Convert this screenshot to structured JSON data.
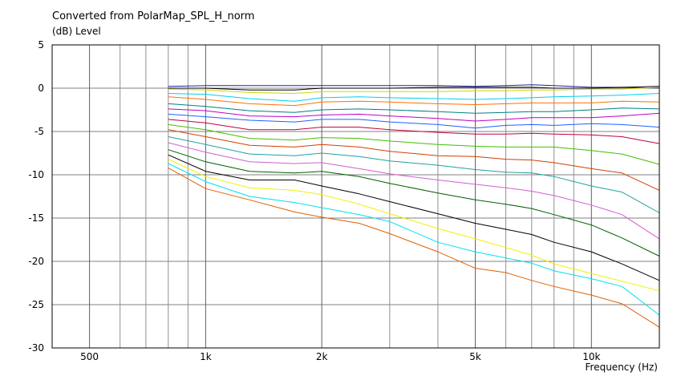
{
  "chart_data": {
    "type": "line",
    "title": "Converted from PolarMap_SPL_H_norm",
    "ylabel": "(dB)  Level",
    "xlabel": "Frequency  (Hz)",
    "xscale": "log",
    "xlim": [
      400,
      15000
    ],
    "ylim": [
      -30,
      5
    ],
    "grid": true,
    "x_ticks": [
      {
        "v": 500,
        "label": "500"
      },
      {
        "v": 1000,
        "label": "1k"
      },
      {
        "v": 2000,
        "label": "2k"
      },
      {
        "v": 5000,
        "label": "5k"
      },
      {
        "v": 10000,
        "label": "10k"
      }
    ],
    "y_ticks": [
      {
        "v": 5,
        "label": "5"
      },
      {
        "v": 0,
        "label": "0"
      },
      {
        "v": -5,
        "label": "-5"
      },
      {
        "v": -10,
        "label": "-10"
      },
      {
        "v": -15,
        "label": "-15"
      },
      {
        "v": -20,
        "label": "-20"
      },
      {
        "v": -25,
        "label": "-25"
      },
      {
        "v": -30,
        "label": "-30"
      }
    ],
    "x": [
      800,
      1000,
      1300,
      1700,
      2000,
      2500,
      3000,
      4000,
      5000,
      6000,
      7000,
      8000,
      10000,
      12000,
      15000
    ],
    "series": [
      {
        "color": "#2020a0",
        "values": [
          0.2,
          0.3,
          0.3,
          0.3,
          0.3,
          0.3,
          0.3,
          0.3,
          0.2,
          0.3,
          0.4,
          0.3,
          0.1,
          0.1,
          0.0
        ]
      },
      {
        "color": "#000000",
        "values": [
          0.0,
          0.0,
          -0.2,
          -0.2,
          0.0,
          0.0,
          0.0,
          0.1,
          0.1,
          0.1,
          0.1,
          0.0,
          0.0,
          0.1,
          0.2
        ]
      },
      {
        "color": "#d4d400",
        "values": [
          -0.1,
          -0.2,
          -0.5,
          -0.6,
          -0.4,
          -0.4,
          -0.4,
          -0.4,
          -0.3,
          -0.3,
          -0.2,
          -0.2,
          -0.1,
          -0.1,
          0.1
        ]
      },
      {
        "color": "#00d0f0",
        "values": [
          -0.6,
          -0.7,
          -1.2,
          -1.5,
          -1.1,
          -1.0,
          -1.1,
          -1.2,
          -1.3,
          -1.2,
          -1.1,
          -1.0,
          -0.9,
          -0.8,
          -0.6
        ]
      },
      {
        "color": "#ff7000",
        "values": [
          -1.0,
          -1.3,
          -1.8,
          -2.0,
          -1.6,
          -1.5,
          -1.6,
          -1.8,
          -1.9,
          -1.8,
          -1.7,
          -1.7,
          -1.7,
          -1.5,
          -1.6
        ]
      },
      {
        "color": "#008080",
        "values": [
          -1.8,
          -2.1,
          -2.6,
          -2.8,
          -2.5,
          -2.4,
          -2.5,
          -2.7,
          -2.9,
          -2.8,
          -2.7,
          -2.7,
          -2.5,
          -2.3,
          -2.4
        ]
      },
      {
        "color": "#c000c0",
        "values": [
          -2.4,
          -2.6,
          -3.2,
          -3.3,
          -3.1,
          -3.0,
          -3.2,
          -3.5,
          -3.8,
          -3.6,
          -3.4,
          -3.4,
          -3.4,
          -3.2,
          -2.9
        ]
      },
      {
        "color": "#2060ff",
        "values": [
          -3.0,
          -3.3,
          -3.7,
          -3.9,
          -3.6,
          -3.6,
          -3.9,
          -4.2,
          -4.6,
          -4.3,
          -4.2,
          -4.3,
          -4.1,
          -4.2,
          -4.5
        ]
      },
      {
        "color": "#c00040",
        "values": [
          -3.6,
          -4.0,
          -4.8,
          -4.8,
          -4.5,
          -4.5,
          -4.8,
          -5.1,
          -5.3,
          -5.3,
          -5.2,
          -5.3,
          -5.4,
          -5.6,
          -6.4
        ]
      },
      {
        "color": "#40c000",
        "values": [
          -4.2,
          -4.8,
          -5.8,
          -6.0,
          -5.7,
          -5.8,
          -6.1,
          -6.5,
          -6.7,
          -6.8,
          -6.8,
          -6.8,
          -7.2,
          -7.6,
          -8.8
        ]
      },
      {
        "color": "#d04000",
        "values": [
          -4.8,
          -5.6,
          -6.6,
          -6.8,
          -6.5,
          -6.8,
          -7.3,
          -7.8,
          -7.9,
          -8.2,
          -8.3,
          -8.6,
          -9.3,
          -9.8,
          -11.8
        ]
      },
      {
        "color": "#20a0a0",
        "values": [
          -5.6,
          -6.5,
          -7.6,
          -7.8,
          -7.5,
          -7.9,
          -8.4,
          -8.9,
          -9.4,
          -9.7,
          -9.8,
          -10.2,
          -11.3,
          -12.0,
          -14.4
        ]
      },
      {
        "color": "#d060d0",
        "values": [
          -6.3,
          -7.4,
          -8.5,
          -8.7,
          -8.6,
          -9.3,
          -9.9,
          -10.6,
          -11.1,
          -11.5,
          -11.9,
          -12.4,
          -13.5,
          -14.6,
          -17.4
        ]
      },
      {
        "color": "#006000",
        "values": [
          -7.1,
          -8.5,
          -9.6,
          -9.8,
          -9.6,
          -10.2,
          -11.0,
          -12.1,
          -12.9,
          -13.4,
          -13.9,
          -14.6,
          -15.8,
          -17.3,
          -19.4
        ]
      },
      {
        "color": "#000000",
        "values": [
          -7.7,
          -9.6,
          -10.6,
          -10.6,
          -11.3,
          -12.2,
          -13.1,
          -14.5,
          -15.6,
          -16.3,
          -16.9,
          -17.8,
          -18.9,
          -20.3,
          -22.2
        ]
      },
      {
        "color": "#f0f000",
        "values": [
          -8.2,
          -10.2,
          -11.5,
          -11.8,
          -12.3,
          -13.4,
          -14.5,
          -16.2,
          -17.4,
          -18.4,
          -19.3,
          -20.3,
          -21.4,
          -22.3,
          -23.4
        ]
      },
      {
        "color": "#00e0f0",
        "values": [
          -8.7,
          -10.8,
          -12.5,
          -13.2,
          -13.8,
          -14.6,
          -15.4,
          -17.8,
          -18.9,
          -19.6,
          -20.2,
          -21.1,
          -22.0,
          -22.9,
          -26.2
        ]
      },
      {
        "color": "#e06000",
        "values": [
          -9.2,
          -11.6,
          -12.9,
          -14.3,
          -14.9,
          -15.6,
          -16.8,
          -18.9,
          -20.8,
          -21.3,
          -22.2,
          -22.9,
          -23.9,
          -24.9,
          -27.6
        ]
      }
    ]
  }
}
